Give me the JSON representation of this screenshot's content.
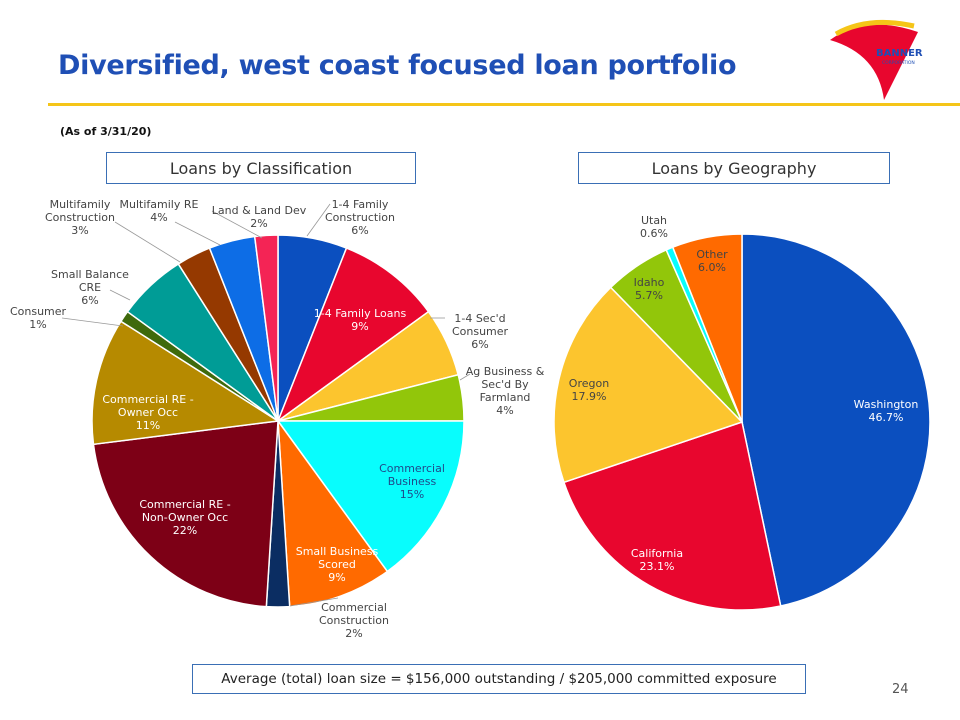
{
  "page": {
    "title": "Diversified, west coast focused loan portfolio",
    "as_of": "(As of 3/31/20)",
    "footer": "Average (total) loan size = $156,000 outstanding / $205,000 committed exposure",
    "page_number": "24",
    "logo_text": "BANNER",
    "logo_subtext": "CORPORATION",
    "rule_color": "#f5c518"
  },
  "chart_data": [
    {
      "type": "pie",
      "title": "Loans by Classification",
      "start_angle": 0,
      "slices": [
        {
          "label": [
            "1-4 Family",
            "Construction",
            "6%"
          ],
          "value": 6,
          "color": "#0b4fbf",
          "text_color": "#444444"
        },
        {
          "label": [
            "1-4 Family Loans",
            "9%"
          ],
          "value": 9,
          "color": "#e8062e",
          "text_color": "#ffffff"
        },
        {
          "label": [
            "1-4 Sec'd",
            "Consumer",
            "6%"
          ],
          "value": 6,
          "color": "#fcc52e",
          "text_color": "#444444"
        },
        {
          "label": [
            "Ag Business &",
            "Sec'd By",
            "Farmland",
            "4%"
          ],
          "value": 4,
          "color": "#92c60a",
          "text_color": "#444444"
        },
        {
          "label": [
            "Commercial",
            "Business",
            "15%"
          ],
          "value": 15,
          "color": "#08fdfd",
          "text_color": "#1f4a8a"
        },
        {
          "label": [
            "Small Business",
            "Scored",
            "9%"
          ],
          "value": 9,
          "color": "#ff6a00",
          "text_color": "#ffffff"
        },
        {
          "label": [
            "Commercial",
            "Construction",
            "2%"
          ],
          "value": 2,
          "color": "#0b2d62",
          "text_color": "#444444"
        },
        {
          "label": [
            "Commercial RE -",
            "Non-Owner Occ",
            "22%"
          ],
          "value": 22,
          "color": "#7d0016",
          "text_color": "#ffffff"
        },
        {
          "label": [
            "Commercial RE -",
            "Owner Occ",
            "11%"
          ],
          "value": 11,
          "color": "#b68a00",
          "text_color": "#ffffff"
        },
        {
          "label": [
            "Consumer",
            "1%"
          ],
          "value": 1,
          "color": "#3f6a0c",
          "text_color": "#444444"
        },
        {
          "label": [
            "Small Balance",
            "CRE",
            "6%"
          ],
          "value": 6,
          "color": "#009c96",
          "text_color": "#444444"
        },
        {
          "label": [
            "Multifamily",
            "Construction",
            "3%"
          ],
          "value": 3,
          "color": "#953900",
          "text_color": "#444444"
        },
        {
          "label": [
            "Multifamily RE",
            "4%"
          ],
          "value": 4,
          "color": "#0d6de6",
          "text_color": "#444444"
        },
        {
          "label": [
            "Land & Land Dev",
            "2%"
          ],
          "value": 2,
          "color": "#f42455",
          "text_color": "#444444"
        }
      ]
    },
    {
      "type": "pie",
      "title": "Loans by Geography",
      "start_angle": 0,
      "slices": [
        {
          "label": [
            "Washington",
            "46.7%"
          ],
          "value": 46.7,
          "color": "#0b4fbf",
          "text_color": "#ffffff"
        },
        {
          "label": [
            "California",
            "23.1%"
          ],
          "value": 23.1,
          "color": "#e8062e",
          "text_color": "#ffffff"
        },
        {
          "label": [
            "Oregon",
            "17.9%"
          ],
          "value": 17.9,
          "color": "#fcc52e",
          "text_color": "#444444"
        },
        {
          "label": [
            "Idaho",
            "5.7%"
          ],
          "value": 5.7,
          "color": "#92c60a",
          "text_color": "#444444"
        },
        {
          "label": [
            "Utah",
            "0.6%"
          ],
          "value": 0.6,
          "color": "#08fdfd",
          "text_color": "#444444"
        },
        {
          "label": [
            "Other",
            "6.0%"
          ],
          "value": 6.0,
          "color": "#ff6a00",
          "text_color": "#444444"
        }
      ]
    }
  ]
}
